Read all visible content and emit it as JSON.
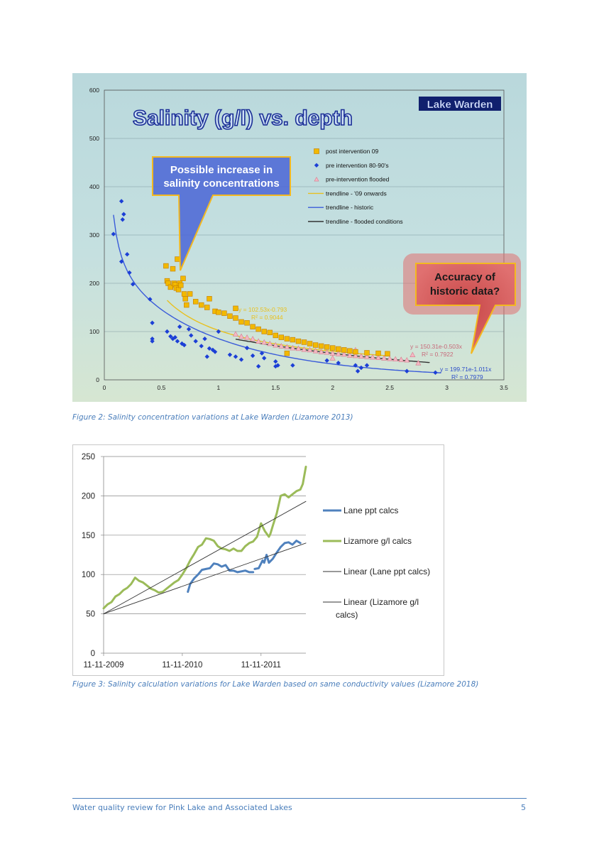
{
  "figure1": {
    "caption": "Figure 2: Salinity concentration variations at Lake Warden (Lizamore 2013)",
    "chart_data": {
      "type": "scatter",
      "title": "Salinity (g/l) vs. depth",
      "badge": "Lake Warden",
      "xlim": [
        0,
        3.5
      ],
      "ylim": [
        0,
        600
      ],
      "x_ticks": [
        "0",
        "0.5",
        "1",
        "1.5",
        "2",
        "2.5",
        "3",
        "3.5"
      ],
      "y_ticks": [
        "0",
        "100",
        "200",
        "300",
        "400",
        "500",
        "600"
      ],
      "legend_placement": "upper-right",
      "legend": [
        {
          "label": "post intervention 09",
          "marker": "square",
          "color": "#f2b900"
        },
        {
          "label": "pre intervention 80-90's",
          "marker": "diamond",
          "color": "#1c3fd6"
        },
        {
          "label": "pre-intervention flooded",
          "marker": "triangle",
          "color": "#e88a9a"
        },
        {
          "label": "trendline - '09 onwards",
          "marker": "line",
          "color": "#e8c020"
        },
        {
          "label": "trendline - historic",
          "marker": "line",
          "color": "#3a5bd9"
        },
        {
          "label": "trendline - flooded conditions",
          "marker": "line",
          "color": "#333333"
        }
      ],
      "callout_increase": [
        "Possible increase in",
        "salinity concentrations"
      ],
      "callout_accuracy": [
        "Accuracy of",
        "historic data?"
      ],
      "eq_post": [
        "y = 102.53x-0.793",
        "R² = 0.9044"
      ],
      "eq_flooded": [
        "y = 150.31e-0.503x",
        "R² = 0.7922"
      ],
      "eq_historic": [
        "y = 199.71e-1.011x",
        "R² = 0.7979"
      ],
      "series": [
        {
          "name": "post intervention 09",
          "points": [
            [
              0.54,
              236
            ],
            [
              0.55,
              205
            ],
            [
              0.56,
              200
            ],
            [
              0.58,
              192
            ],
            [
              0.6,
              230
            ],
            [
              0.61,
              200
            ],
            [
              0.62,
              197
            ],
            [
              0.63,
              190
            ],
            [
              0.64,
              250
            ],
            [
              0.65,
              187
            ],
            [
              0.66,
              200
            ],
            [
              0.67,
              196
            ],
            [
              0.69,
              210
            ],
            [
              0.7,
              178
            ],
            [
              0.71,
              168
            ],
            [
              0.72,
              155
            ],
            [
              0.75,
              178
            ],
            [
              0.8,
              162
            ],
            [
              0.85,
              155
            ],
            [
              0.9,
              150
            ],
            [
              0.92,
              168
            ],
            [
              0.97,
              142
            ],
            [
              1.0,
              140
            ],
            [
              1.05,
              138
            ],
            [
              1.1,
              132
            ],
            [
              1.15,
              128
            ],
            [
              1.15,
              148
            ],
            [
              1.2,
              120
            ],
            [
              1.25,
              118
            ],
            [
              1.3,
              110
            ],
            [
              1.35,
              105
            ],
            [
              1.4,
              100
            ],
            [
              1.45,
              98
            ],
            [
              1.5,
              92
            ],
            [
              1.55,
              88
            ],
            [
              1.6,
              85
            ],
            [
              1.65,
              83
            ],
            [
              1.7,
              80
            ],
            [
              1.75,
              78
            ],
            [
              1.8,
              75
            ],
            [
              1.85,
              72
            ],
            [
              1.9,
              70
            ],
            [
              1.95,
              68
            ],
            [
              2.0,
              66
            ],
            [
              2.05,
              64
            ],
            [
              2.1,
              62
            ],
            [
              2.15,
              60
            ],
            [
              2.2,
              58
            ],
            [
              2.3,
              56
            ],
            [
              2.4,
              55
            ],
            [
              2.48,
              54
            ],
            [
              1.6,
              55
            ]
          ]
        },
        {
          "name": "pre intervention 80-90's",
          "points": [
            [
              0.08,
              302
            ],
            [
              0.15,
              245
            ],
            [
              0.15,
              370
            ],
            [
              0.16,
              332
            ],
            [
              0.17,
              343
            ],
            [
              0.2,
              260
            ],
            [
              0.22,
              222
            ],
            [
              0.25,
              198
            ],
            [
              0.4,
              167
            ],
            [
              0.42,
              118
            ],
            [
              0.42,
              85
            ],
            [
              0.42,
              80
            ],
            [
              0.55,
              100
            ],
            [
              0.58,
              90
            ],
            [
              0.6,
              85
            ],
            [
              0.62,
              88
            ],
            [
              0.64,
              80
            ],
            [
              0.66,
              110
            ],
            [
              0.68,
              75
            ],
            [
              0.7,
              72
            ],
            [
              0.74,
              105
            ],
            [
              0.76,
              92
            ],
            [
              0.8,
              80
            ],
            [
              0.85,
              70
            ],
            [
              0.88,
              85
            ],
            [
              0.9,
              48
            ],
            [
              0.92,
              65
            ],
            [
              0.95,
              62
            ],
            [
              0.97,
              58
            ],
            [
              1.0,
              100
            ],
            [
              1.1,
              52
            ],
            [
              1.15,
              48
            ],
            [
              1.2,
              42
            ],
            [
              1.25,
              66
            ],
            [
              1.3,
              50
            ],
            [
              1.35,
              28
            ],
            [
              1.38,
              55
            ],
            [
              1.4,
              45
            ],
            [
              1.5,
              38
            ],
            [
              1.5,
              28
            ],
            [
              1.52,
              30
            ],
            [
              1.65,
              30
            ],
            [
              1.95,
              40
            ],
            [
              2.05,
              35
            ],
            [
              2.2,
              30
            ],
            [
              2.25,
              25
            ],
            [
              2.22,
              18
            ],
            [
              2.3,
              30
            ],
            [
              2.65,
              18
            ],
            [
              2.9,
              15
            ]
          ]
        },
        {
          "name": "pre-intervention flooded",
          "points": [
            [
              1.15,
              95
            ],
            [
              1.2,
              90
            ],
            [
              1.25,
              88
            ],
            [
              1.3,
              85
            ],
            [
              1.35,
              80
            ],
            [
              1.4,
              78
            ],
            [
              1.45,
              75
            ],
            [
              1.5,
              72
            ],
            [
              1.55,
              70
            ],
            [
              1.6,
              68
            ],
            [
              1.65,
              66
            ],
            [
              1.7,
              65
            ],
            [
              1.75,
              63
            ],
            [
              1.8,
              62
            ],
            [
              1.85,
              60
            ],
            [
              1.9,
              58
            ],
            [
              1.95,
              57
            ],
            [
              2.0,
              55
            ],
            [
              2.05,
              54
            ],
            [
              2.1,
              53
            ],
            [
              2.15,
              51
            ],
            [
              2.2,
              50
            ],
            [
              2.25,
              49
            ],
            [
              2.3,
              48
            ],
            [
              2.35,
              47
            ],
            [
              2.4,
              46
            ],
            [
              2.45,
              45
            ],
            [
              2.5,
              44
            ],
            [
              2.55,
              43
            ],
            [
              2.6,
              42
            ],
            [
              2.65,
              41
            ],
            [
              2.7,
              52
            ],
            [
              2.75,
              35
            ],
            [
              2.2,
              62
            ],
            [
              2.0,
              45
            ]
          ]
        }
      ]
    }
  },
  "figure2": {
    "caption": "Figure 3: Salinity calculation variations for Lake Warden based on same conductivity values (Lizamore 2018)",
    "chart_data": {
      "type": "line",
      "ylim": [
        0,
        250
      ],
      "y_ticks": [
        "0",
        "50",
        "100",
        "150",
        "200",
        "250"
      ],
      "x_ticks": [
        "11-11-2009",
        "11-11-2010",
        "11-11-2011"
      ],
      "x_tick_pos": [
        0,
        1,
        2
      ],
      "xlim": [
        0,
        2.57
      ],
      "legend_placement": "right",
      "legend": [
        "Lane ppt calcs",
        "Lizamore g/l calcs",
        "Linear (Lane ppt calcs)",
        "Linear (Lizamore g/l calcs)"
      ],
      "series": [
        {
          "name": "Lane ppt calcs",
          "color": "#4f81bd",
          "x": [
            1.07,
            1.1,
            1.15,
            1.2,
            1.25,
            1.3,
            1.35,
            1.4,
            1.45,
            1.5,
            1.55,
            1.6,
            1.65,
            1.7,
            1.75,
            1.8,
            1.85,
            1.9,
            null,
            1.92,
            1.97,
            2.02,
            2.04,
            2.07,
            2.1,
            2.15,
            2.2,
            2.25,
            2.3,
            2.35,
            2.4,
            2.45,
            2.5
          ],
          "y": [
            78,
            88,
            95,
            100,
            106,
            107,
            108,
            114,
            113,
            110,
            112,
            105,
            105,
            103,
            104,
            105,
            103,
            103,
            null,
            107,
            108,
            118,
            115,
            125,
            115,
            120,
            128,
            135,
            140,
            141,
            138,
            143,
            140
          ]
        },
        {
          "name": "Lizamore g/l calcs",
          "color": "#9bbb59",
          "x": [
            0,
            0.05,
            0.1,
            0.15,
            0.2,
            0.25,
            0.3,
            0.35,
            0.4,
            0.45,
            0.5,
            0.55,
            0.6,
            0.65,
            0.7,
            0.75,
            0.8,
            0.85,
            0.9,
            0.95,
            1.0,
            1.05,
            1.1,
            1.15,
            1.2,
            1.25,
            1.3,
            1.35,
            1.4,
            1.45,
            1.5,
            1.55,
            1.6,
            1.65,
            1.7,
            1.75,
            1.8,
            1.85,
            1.9,
            1.95,
            2.0,
            2.05,
            2.1,
            2.12,
            2.15,
            2.2,
            2.25,
            2.3,
            2.35,
            2.4,
            2.45,
            2.5,
            2.53,
            2.57
          ],
          "y": [
            57,
            62,
            65,
            72,
            75,
            80,
            83,
            88,
            96,
            92,
            90,
            86,
            82,
            80,
            77,
            78,
            82,
            86,
            90,
            93,
            100,
            108,
            118,
            126,
            135,
            138,
            146,
            145,
            143,
            136,
            133,
            132,
            130,
            133,
            130,
            130,
            136,
            140,
            142,
            148,
            165,
            155,
            148,
            152,
            162,
            178,
            200,
            202,
            198,
            202,
            206,
            208,
            215,
            237
          ]
        },
        {
          "name": "Linear (Lane ppt calcs)",
          "color": "#333333",
          "x": [
            0,
            2.57
          ],
          "y": [
            50,
            140
          ]
        },
        {
          "name": "Linear (Lizamore g/l calcs)",
          "color": "#333333",
          "x": [
            0,
            2.57
          ],
          "y": [
            50,
            193
          ]
        }
      ]
    }
  },
  "footer": {
    "left": "Water quality review for Pink Lake and Associated Lakes",
    "page": "5"
  }
}
